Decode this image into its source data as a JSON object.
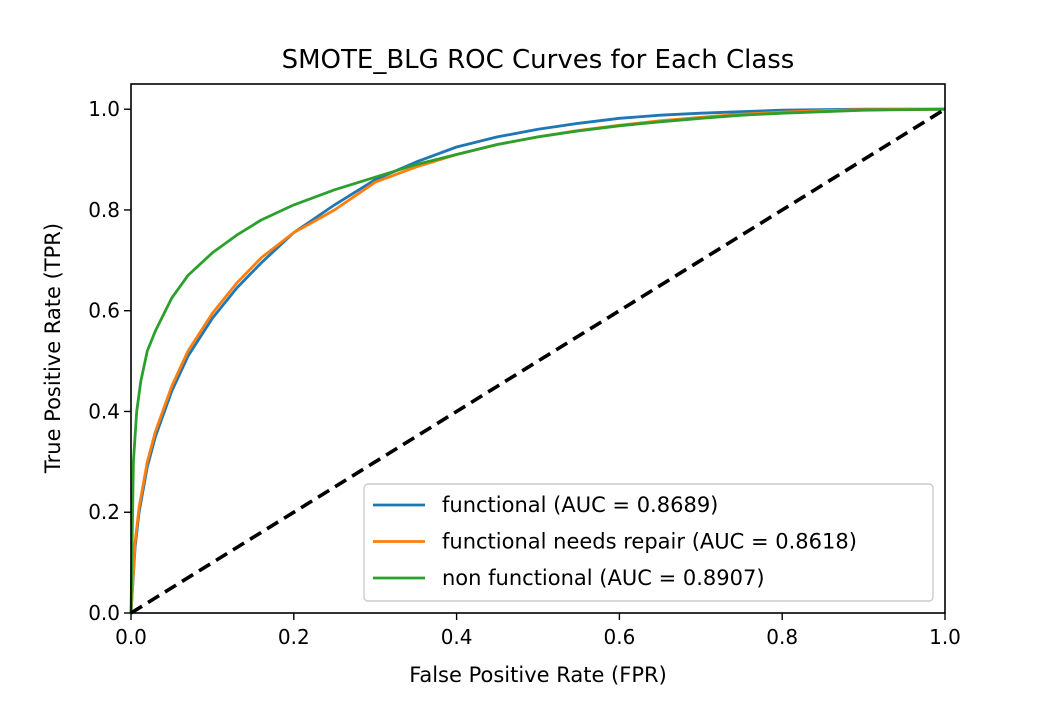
{
  "chart_data": {
    "type": "line",
    "title": "SMOTE_BLG ROC Curves for Each Class",
    "xlabel": "False Positive Rate (FPR)",
    "ylabel": "True Positive Rate (TPR)",
    "xlim": [
      0.0,
      1.0
    ],
    "ylim": [
      0.0,
      1.05
    ],
    "xticks": [
      "0.0",
      "0.2",
      "0.4",
      "0.6",
      "0.8",
      "1.0"
    ],
    "yticks": [
      "0.0",
      "0.2",
      "0.4",
      "0.6",
      "0.8",
      "1.0"
    ],
    "grid": false,
    "legend_position": "lower-right",
    "series": [
      {
        "name": "functional (AUC = 0.8689)",
        "color": "#1f77b4",
        "x": [
          0.0,
          0.005,
          0.01,
          0.02,
          0.03,
          0.05,
          0.07,
          0.1,
          0.13,
          0.16,
          0.2,
          0.25,
          0.3,
          0.35,
          0.4,
          0.45,
          0.5,
          0.55,
          0.6,
          0.65,
          0.7,
          0.75,
          0.8,
          0.85,
          0.9,
          1.0
        ],
        "y": [
          0.0,
          0.13,
          0.2,
          0.29,
          0.35,
          0.44,
          0.51,
          0.585,
          0.645,
          0.695,
          0.755,
          0.81,
          0.86,
          0.895,
          0.925,
          0.945,
          0.96,
          0.972,
          0.982,
          0.988,
          0.992,
          0.995,
          0.998,
          0.999,
          1.0,
          1.0
        ]
      },
      {
        "name": "functional needs repair (AUC = 0.8618)",
        "color": "#ff7f0e",
        "x": [
          0.0,
          0.005,
          0.01,
          0.02,
          0.03,
          0.05,
          0.07,
          0.1,
          0.13,
          0.16,
          0.2,
          0.25,
          0.3,
          0.35,
          0.4,
          0.45,
          0.5,
          0.55,
          0.6,
          0.65,
          0.7,
          0.75,
          0.8,
          0.85,
          0.9,
          1.0
        ],
        "y": [
          0.0,
          0.14,
          0.21,
          0.3,
          0.36,
          0.45,
          0.52,
          0.595,
          0.655,
          0.705,
          0.755,
          0.8,
          0.855,
          0.885,
          0.91,
          0.93,
          0.945,
          0.958,
          0.968,
          0.977,
          0.984,
          0.99,
          0.994,
          0.997,
          0.999,
          1.0
        ]
      },
      {
        "name": "non functional (AUC = 0.8907)",
        "color": "#2ca02c",
        "x": [
          0.0,
          0.003,
          0.007,
          0.012,
          0.02,
          0.03,
          0.05,
          0.07,
          0.1,
          0.13,
          0.16,
          0.2,
          0.25,
          0.3,
          0.35,
          0.4,
          0.45,
          0.5,
          0.55,
          0.6,
          0.65,
          0.7,
          0.75,
          0.8,
          0.85,
          0.9,
          1.0
        ],
        "y": [
          0.0,
          0.3,
          0.4,
          0.46,
          0.52,
          0.56,
          0.625,
          0.67,
          0.715,
          0.75,
          0.78,
          0.81,
          0.84,
          0.865,
          0.89,
          0.91,
          0.93,
          0.945,
          0.957,
          0.967,
          0.975,
          0.982,
          0.988,
          0.992,
          0.995,
          0.998,
          1.0
        ]
      },
      {
        "name": "",
        "color": "#000000",
        "dashed": true,
        "x": [
          0.0,
          1.0
        ],
        "y": [
          0.0,
          1.0
        ]
      }
    ]
  }
}
